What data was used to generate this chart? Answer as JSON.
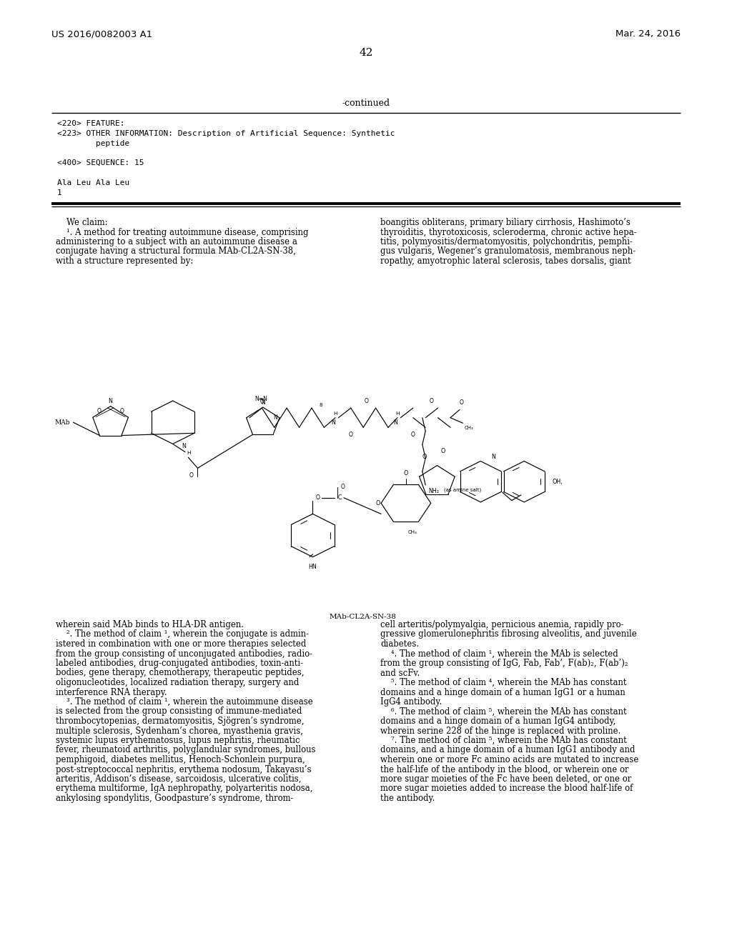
{
  "patent_number": "US 2016/0082003 A1",
  "patent_date": "Mar. 24, 2016",
  "page_number": "42",
  "continued_label": "-continued",
  "seq_lines": [
    "<220> FEATURE:",
    "<223> OTHER INFORMATION: Description of Artificial Sequence: Synthetic",
    "        peptide",
    "",
    "<400> SEQUENCE: 15",
    "",
    "Ala Leu Ala Leu",
    "1"
  ],
  "left_top": [
    "    We claim:",
    "    ¹. A method for treating autoimmune disease, comprising",
    "administering to a subject with an autoimmune disease a",
    "conjugate having a structural formula MAb-CL2A-SN-38,",
    "with a structure represented by:"
  ],
  "right_top": [
    "boangitis obliterans, primary biliary cirrhosis, Hashimoto’s",
    "thyroiditis, thyrotoxicosis, scleroderma, chronic active hepa-",
    "titis, polymyositis/dermatomyositis, polychondritis, pemphi-",
    "gus vulgaris, Wegener’s granulomatosis, membranous neph-",
    "ropathy, amyotrophic lateral sclerosis, tabes dorsalis, giant"
  ],
  "left_bottom": [
    "wherein said MAb binds to HLA-DR antigen.",
    "    ². The method of claim ¹, wherein the conjugate is admin-",
    "istered in combination with one or more therapies selected",
    "from the group consisting of unconjugated antibodies, radio-",
    "labeled antibodies, drug-conjugated antibodies, toxin-anti-",
    "bodies, gene therapy, chemotherapy, therapeutic peptides,",
    "oligonucleotides, localized radiation therapy, surgery and",
    "interference RNA therapy.",
    "    ³. The method of claim ¹, wherein the autoimmune disease",
    "is selected from the group consisting of immune-mediated",
    "thrombocytopenias, dermatomyositis, Sjögren’s syndrome,",
    "multiple sclerosis, Sydenham’s chorea, myasthenia gravis,",
    "systemic lupus erythematosus, lupus nephritis, rheumatic",
    "fever, rheumatoid arthritis, polyglandular syndromes, bullous",
    "pemphigoid, diabetes mellitus, Henoch-Schonlein purpura,",
    "post-streptococcal nephritis, erythema nodosum, Takayasu’s",
    "arteritis, Addison’s disease, sarcoidosis, ulcerative colitis,",
    "erythema multiforme, IgA nephropathy, polyarteritis nodosa,",
    "ankylosing spondylitis, Goodpasture’s syndrome, throm-"
  ],
  "right_bottom": [
    "cell arteritis/polymyalgia, pernicious anemia, rapidly pro-",
    "gressive glomerulonephritis fibrosing alveolitis, and juvenile",
    "diabetes.",
    "    ⁴. The method of claim ¹, wherein the MAb is selected",
    "from the group consisting of IgG, Fab, Fab’, F(ab)₂, F(ab’)₂",
    "and scFv.",
    "    ⁵. The method of claim ⁴, wherein the MAb has constant",
    "domains and a hinge domain of a human IgG1 or a human",
    "IgG4 antibody.",
    "    ⁶. The method of claim ⁵, wherein the MAb has constant",
    "domains and a hinge domain of a human IgG4 antibody,",
    "wherein serine 228 of the hinge is replaced with proline.",
    "    ⁷. The method of claim ⁵, wherein the MAb has constant",
    "domains, and a hinge domain of a human IgG1 antibody and",
    "wherein one or more Fc amino acids are mutated to increase",
    "the half-life of the antibody in the blood, or wherein one or",
    "more sugar moieties of the Fc have been deleted, or one or",
    "more sugar moieties added to increase the blood half-life of",
    "the antibody."
  ]
}
